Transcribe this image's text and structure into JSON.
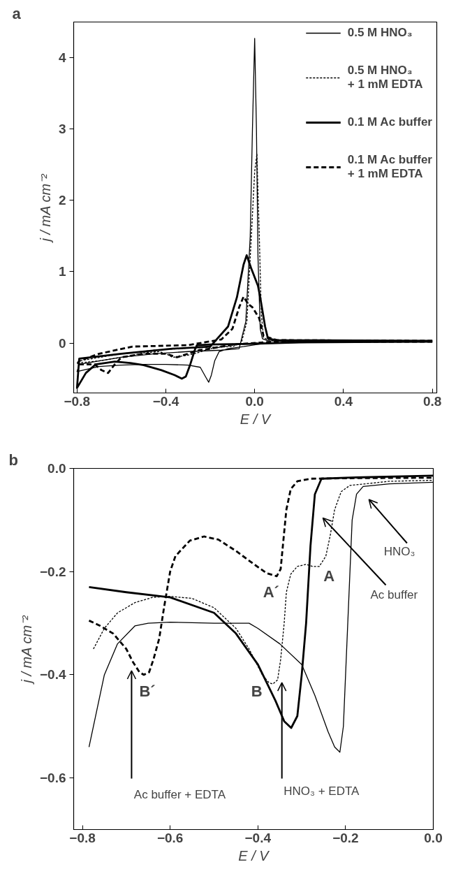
{
  "chart_data": [
    {
      "type": "line",
      "title": "a",
      "xlabel": "E / V",
      "ylabel": "j / mA cm⁻²",
      "xlim": [
        -0.815,
        0.82
      ],
      "ylim": [
        -0.7,
        4.5
      ],
      "xticks": [
        -0.8,
        -0.4,
        {
          "value": 0,
          "label": "0.0"
        },
        0.4,
        0.8
      ],
      "yticks": [
        0,
        1,
        2,
        3,
        4
      ],
      "legend": "top right",
      "series": [
        {
          "name": "0.5 M HNO₃",
          "color": "#000000",
          "line_style": "solid",
          "x": [
            0.8,
            0.3,
            0.05,
            -0.05,
            -0.12,
            -0.16,
            -0.18,
            -0.195,
            -0.207,
            -0.22,
            -0.245,
            -0.3,
            -0.4,
            -0.5,
            -0.6,
            -0.7,
            -0.8,
            -0.79,
            -0.7,
            -0.6,
            -0.45,
            -0.3,
            -0.15,
            -0.07,
            -0.04,
            -0.02,
            -0.01,
            0.0,
            0.008,
            0.015,
            0.025,
            0.035,
            0.06,
            0.2,
            0.8
          ],
          "values": [
            0.02,
            0.01,
            0.0,
            -0.05,
            -0.08,
            -0.12,
            -0.25,
            -0.45,
            -0.55,
            -0.48,
            -0.34,
            -0.31,
            -0.3,
            -0.3,
            -0.31,
            -0.33,
            -0.4,
            -0.3,
            -0.25,
            -0.2,
            -0.15,
            -0.12,
            -0.1,
            -0.08,
            0.3,
            1.5,
            3.0,
            4.27,
            3.0,
            1.2,
            0.2,
            0.06,
            0.03,
            0.02,
            0.03
          ]
        },
        {
          "name": "0.5 M HNO₃ + 1 mM EDTA",
          "color": "#000000",
          "line_style": "dotted",
          "x": [
            0.8,
            0.2,
            0.0,
            -0.1,
            -0.2,
            -0.26,
            -0.3,
            -0.34,
            -0.37,
            -0.4,
            -0.43,
            -0.5,
            -0.6,
            -0.7,
            -0.8,
            -0.79,
            -0.6,
            -0.45,
            -0.3,
            -0.1,
            -0.06,
            -0.035,
            -0.015,
            0.0,
            0.01,
            0.02,
            0.03,
            0.04,
            0.06,
            0.2,
            0.8
          ],
          "values": [
            0.02,
            0.01,
            0.0,
            -0.03,
            -0.08,
            -0.14,
            -0.17,
            -0.19,
            -0.2,
            -0.15,
            -0.12,
            -0.14,
            -0.2,
            -0.25,
            -0.28,
            -0.25,
            -0.15,
            -0.1,
            -0.07,
            -0.05,
            0.0,
            0.3,
            1.5,
            2.4,
            2.65,
            1.6,
            0.4,
            0.08,
            0.04,
            0.02,
            0.03
          ]
        },
        {
          "name": "0.1 M Ac buffer",
          "color": "#000000",
          "line_style": "solid",
          "x": [
            0.8,
            0.2,
            0.0,
            -0.2,
            -0.26,
            -0.27,
            -0.29,
            -0.31,
            -0.328,
            -0.36,
            -0.42,
            -0.5,
            -0.56,
            -0.63,
            -0.716,
            -0.76,
            -0.8,
            -0.79,
            -0.6,
            -0.37,
            -0.2,
            -0.12,
            -0.08,
            -0.05,
            -0.036,
            -0.016,
            0.015,
            0.025,
            0.047,
            0.06,
            0.1,
            0.8
          ],
          "values": [
            0.02,
            0.01,
            -0.01,
            -0.02,
            -0.03,
            -0.1,
            -0.3,
            -0.47,
            -0.5,
            -0.45,
            -0.38,
            -0.31,
            -0.28,
            -0.26,
            -0.3,
            -0.42,
            -0.63,
            -0.22,
            -0.15,
            -0.08,
            -0.05,
            0.23,
            0.64,
            1.1,
            1.23,
            1.05,
            0.8,
            0.64,
            0.23,
            0.06,
            0.04,
            0.03
          ]
        },
        {
          "name": "0.1 M Ac buffer + 1 mM EDTA",
          "color": "#000000",
          "line_style": "dashed",
          "x": [
            0.8,
            0.1,
            -0.1,
            -0.2,
            -0.25,
            -0.3,
            -0.35,
            -0.4,
            -0.5,
            -0.6,
            -0.63,
            -0.66,
            -0.69,
            -0.72,
            -0.8,
            -0.79,
            -0.7,
            -0.55,
            -0.3,
            -0.15,
            -0.1,
            -0.07,
            -0.05,
            -0.03,
            -0.01,
            0.02,
            0.04,
            0.1,
            0.8
          ],
          "values": [
            0.02,
            0.02,
            -0.02,
            -0.08,
            -0.1,
            -0.15,
            -0.2,
            -0.15,
            -0.15,
            -0.2,
            -0.3,
            -0.42,
            -0.38,
            -0.3,
            -0.3,
            -0.25,
            -0.15,
            -0.05,
            -0.03,
            0.05,
            0.2,
            0.5,
            0.65,
            0.55,
            0.5,
            0.35,
            0.1,
            0.04,
            0.03
          ]
        }
      ]
    },
    {
      "type": "line",
      "title": "b",
      "xlabel": "E / V",
      "ylabel": "j / mA cm⁻²",
      "xlim": [
        -0.82,
        0
      ],
      "ylim": [
        -0.7,
        0
      ],
      "xticks": [
        -0.8,
        -0.6,
        -0.4,
        -0.2,
        {
          "value": 0,
          "label": "0.0"
        }
      ],
      "yticks": [
        {
          "value": 0,
          "label": "0.0"
        },
        -0.2,
        -0.4,
        -0.6
      ],
      "annotations": [
        {
          "text": "A´",
          "x": -0.357,
          "y": -0.209
        },
        {
          "text": "A",
          "x": -0.26,
          "y": -0.19
        },
        {
          "text": "B´",
          "x": -0.66,
          "y": -0.4
        },
        {
          "text": "B",
          "x": -0.366,
          "y": -0.418
        },
        "HNO₃",
        "Ac buffer",
        "Ac buffer + EDTA",
        "HNO₃ + EDTA"
      ],
      "series": [
        {
          "color": "#000000",
          "line_style": "solid",
          "x": [
            -0.785,
            -0.75,
            -0.72,
            -0.68,
            -0.65,
            -0.6,
            -0.5,
            -0.42,
            -0.4,
            -0.35,
            -0.3,
            -0.27,
            -0.24,
            -0.225,
            -0.213,
            -0.205,
            -0.195,
            -0.185,
            -0.175,
            -0.16,
            -0.1,
            0.0
          ],
          "values": [
            -0.54,
            -0.4,
            -0.34,
            -0.305,
            -0.3,
            -0.298,
            -0.3,
            -0.3,
            -0.31,
            -0.34,
            -0.38,
            -0.44,
            -0.51,
            -0.54,
            -0.55,
            -0.5,
            -0.3,
            -0.1,
            -0.05,
            -0.035,
            -0.03,
            -0.027
          ]
        },
        {
          "color": "#000000",
          "line_style": "dotted",
          "x": [
            -0.775,
            -0.75,
            -0.72,
            -0.68,
            -0.64,
            -0.6,
            -0.55,
            -0.5,
            -0.45,
            -0.42,
            -0.39,
            -0.375,
            -0.366,
            -0.355,
            -0.348,
            -0.34,
            -0.335,
            -0.325,
            -0.31,
            -0.29,
            -0.275,
            -0.26,
            -0.245,
            -0.235,
            -0.225,
            -0.21,
            -0.19,
            -0.1,
            0.0
          ],
          "values": [
            -0.35,
            -0.31,
            -0.28,
            -0.26,
            -0.25,
            -0.248,
            -0.252,
            -0.27,
            -0.31,
            -0.35,
            -0.4,
            -0.415,
            -0.418,
            -0.41,
            -0.37,
            -0.3,
            -0.24,
            -0.205,
            -0.19,
            -0.186,
            -0.19,
            -0.19,
            -0.17,
            -0.13,
            -0.08,
            -0.045,
            -0.033,
            -0.025,
            -0.023
          ]
        },
        {
          "color": "#000000",
          "line_style": "solid",
          "x": [
            -0.785,
            -0.7,
            -0.6,
            -0.5,
            -0.45,
            -0.4,
            -0.36,
            -0.34,
            -0.324,
            -0.31,
            -0.3,
            -0.29,
            -0.28,
            -0.27,
            -0.255,
            -0.2,
            0.0
          ],
          "values": [
            -0.23,
            -0.24,
            -0.25,
            -0.28,
            -0.32,
            -0.38,
            -0.45,
            -0.49,
            -0.503,
            -0.48,
            -0.4,
            -0.3,
            -0.15,
            -0.05,
            -0.02,
            -0.018,
            -0.014
          ]
        },
        {
          "color": "#000000",
          "line_style": "dashed",
          "x": [
            -0.785,
            -0.76,
            -0.73,
            -0.7,
            -0.685,
            -0.67,
            -0.66,
            -0.648,
            -0.638,
            -0.625,
            -0.614,
            -0.6,
            -0.588,
            -0.555,
            -0.523,
            -0.49,
            -0.45,
            -0.41,
            -0.38,
            -0.357,
            -0.348,
            -0.343,
            -0.335,
            -0.325,
            -0.31,
            -0.28,
            -0.2,
            0.0
          ],
          "values": [
            -0.295,
            -0.305,
            -0.32,
            -0.35,
            -0.375,
            -0.395,
            -0.4,
            -0.395,
            -0.37,
            -0.33,
            -0.27,
            -0.2,
            -0.17,
            -0.14,
            -0.132,
            -0.138,
            -0.16,
            -0.185,
            -0.203,
            -0.209,
            -0.195,
            -0.15,
            -0.08,
            -0.04,
            -0.025,
            -0.02,
            -0.019,
            -0.018
          ]
        }
      ]
    }
  ]
}
